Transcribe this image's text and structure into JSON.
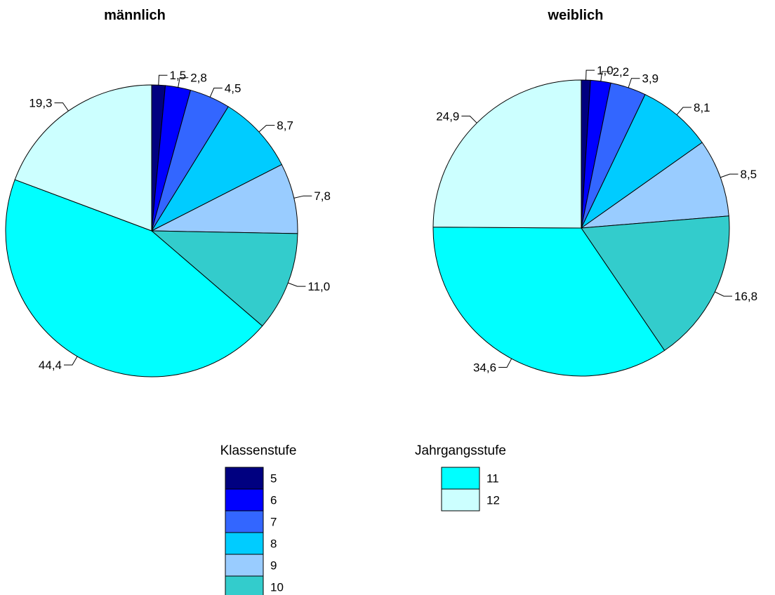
{
  "chart_data": [
    {
      "type": "pie",
      "title": "männlich",
      "categories": [
        "5",
        "6",
        "7",
        "8",
        "9",
        "10",
        "11",
        "12"
      ],
      "values": [
        1.5,
        2.8,
        4.5,
        8.7,
        7.8,
        11.0,
        44.4,
        19.3
      ],
      "labels": [
        "1,5",
        "2,8",
        "4,5",
        "8,7",
        "7,8",
        "11,0",
        "44,4",
        "19,3"
      ]
    },
    {
      "type": "pie",
      "title": "weiblich",
      "categories": [
        "5",
        "6",
        "7",
        "8",
        "9",
        "10",
        "11",
        "12"
      ],
      "values": [
        1.0,
        2.2,
        3.9,
        8.1,
        8.5,
        16.8,
        34.6,
        24.9
      ],
      "labels": [
        "1,0",
        "2,2",
        "3,9",
        "8,1",
        "8,5",
        "16,8",
        "34,6",
        "24,9"
      ]
    }
  ],
  "colors": {
    "5": "#000080",
    "6": "#0000ff",
    "7": "#3366ff",
    "8": "#00ccff",
    "9": "#99ccff",
    "10": "#33cccc",
    "11": "#00ffff",
    "12": "#ccffff"
  },
  "legend": [
    {
      "title": "Klassenstufe",
      "items": [
        "5",
        "6",
        "7",
        "8",
        "9",
        "10"
      ]
    },
    {
      "title": "Jahrgangsstufe",
      "items": [
        "11",
        "12"
      ]
    }
  ]
}
